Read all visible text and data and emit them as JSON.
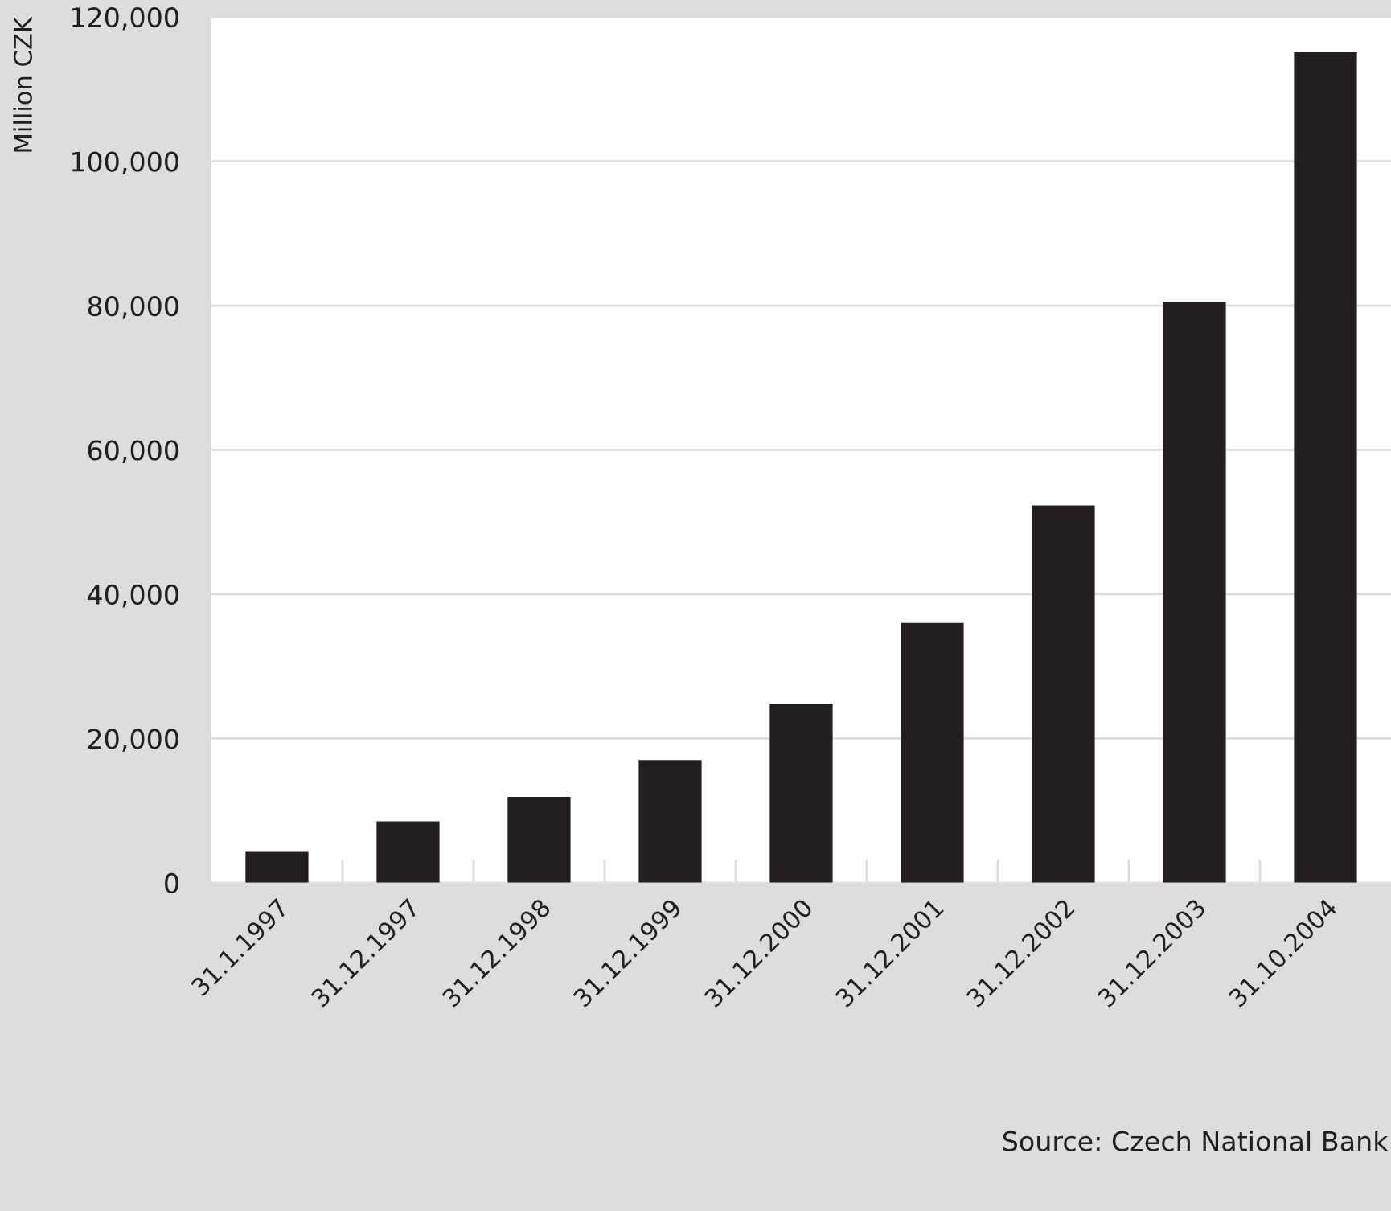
{
  "chart_data": {
    "type": "bar",
    "ylabel": "Million CZK",
    "categories": [
      "31.1.1997",
      "31.12.1997",
      "31.12.1998",
      "31.12.1999",
      "31.12.2000",
      "31.12.2001",
      "31.12.2002",
      "31.12.2003",
      "31.10.2004"
    ],
    "values": [
      4400,
      8500,
      11900,
      17000,
      24800,
      36000,
      52300,
      80500,
      115100
    ],
    "color": "#231f20",
    "ylim": [
      0,
      120000
    ],
    "yticks": [
      {
        "value": 0,
        "label": "0"
      },
      {
        "value": 20000,
        "label": "20,000"
      },
      {
        "value": 40000,
        "label": "40,000"
      },
      {
        "value": 60000,
        "label": "60,000"
      },
      {
        "value": 80000,
        "label": "80,000"
      },
      {
        "value": 100000,
        "label": "100,000"
      },
      {
        "value": 120000,
        "label": "120,000"
      }
    ],
    "grid": "y",
    "annotations": [
      "Source: Czech National Bank"
    ]
  }
}
